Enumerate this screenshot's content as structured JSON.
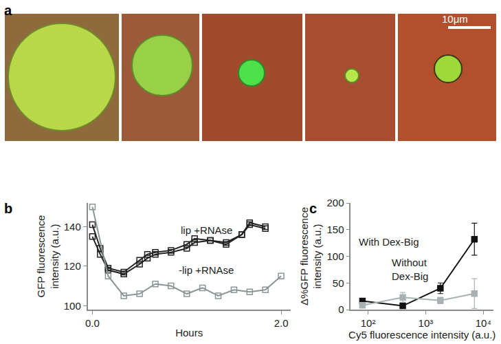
{
  "images": {
    "label": "a",
    "scale_bar": "10μm"
  },
  "chart_data": [
    {
      "type": "line",
      "label": "b",
      "x_label": "Hours",
      "y_label": "GFP fluorescence intensity (a.u.)",
      "xlim": [
        -0.05,
        2.1
      ],
      "xticks": [
        {
          "value": 0,
          "label": "0.0"
        },
        {
          "value": 2,
          "label": "2.0"
        }
      ],
      "ylim": [
        98,
        152
      ],
      "yticks": [
        100,
        120,
        140
      ],
      "grid": false,
      "series": [
        {
          "name": "lip +RNAse",
          "color": "#222222",
          "marker": "square-open",
          "x": [
            0,
            0.083,
            0.167,
            0.333,
            0.5,
            0.583,
            0.667,
            0.833,
            1.0,
            1.083,
            1.25,
            1.417,
            1.583,
            1.667,
            1.833
          ],
          "values": [
            141,
            129,
            119,
            117,
            123,
            126,
            127,
            128,
            131,
            134,
            133,
            131,
            136,
            142,
            140
          ]
        },
        {
          "name": "lip +RNAse",
          "color": "#222222",
          "marker": "square-open",
          "x": [
            0,
            0.083,
            0.167,
            0.333,
            0.5,
            0.583,
            0.667,
            0.833,
            1.0,
            1.083,
            1.25,
            1.417,
            1.583,
            1.667,
            1.833
          ],
          "values": [
            135,
            126,
            118,
            116,
            121,
            124,
            126,
            127,
            129,
            132,
            133,
            132,
            136,
            141,
            139
          ]
        },
        {
          "name": "-lip +RNAse",
          "color": "#8a9696",
          "marker": "square-open",
          "x": [
            0,
            0.167,
            0.333,
            0.5,
            0.667,
            0.833,
            1.0,
            1.167,
            1.333,
            1.5,
            1.667,
            1.833,
            2.0
          ],
          "values": [
            150,
            115,
            105,
            106,
            111,
            110,
            106,
            109,
            105,
            108,
            107,
            108,
            115
          ]
        }
      ]
    },
    {
      "type": "line",
      "label": "c",
      "x_label": "Cy5 fluorescence intensity (a.u.)",
      "y_label": "Δ%GFP fluorescence intensity (a.u.)",
      "log": "x",
      "xlim": [
        50,
        15000
      ],
      "xticks": [
        {
          "value": 100,
          "label": "10²"
        },
        {
          "value": 1000,
          "label": "10³"
        },
        {
          "value": 10000,
          "label": "10⁴"
        }
      ],
      "ylim": [
        0,
        200
      ],
      "yticks": [
        0,
        50,
        100,
        150,
        200
      ],
      "grid": false,
      "series": [
        {
          "name": "With Dex-Big",
          "color": "#111111",
          "marker": "square",
          "x": [
            80,
            400,
            1800,
            7000
          ],
          "values": [
            16,
            7,
            40,
            132
          ],
          "errors": [
            5,
            3,
            10,
            30
          ]
        },
        {
          "name": "Without Dex-Big",
          "color": "#a8b2b2",
          "marker": "square",
          "x": [
            80,
            400,
            1800,
            7000
          ],
          "values": [
            8,
            23,
            17,
            30
          ],
          "errors": [
            4,
            9,
            6,
            28
          ]
        }
      ]
    }
  ]
}
